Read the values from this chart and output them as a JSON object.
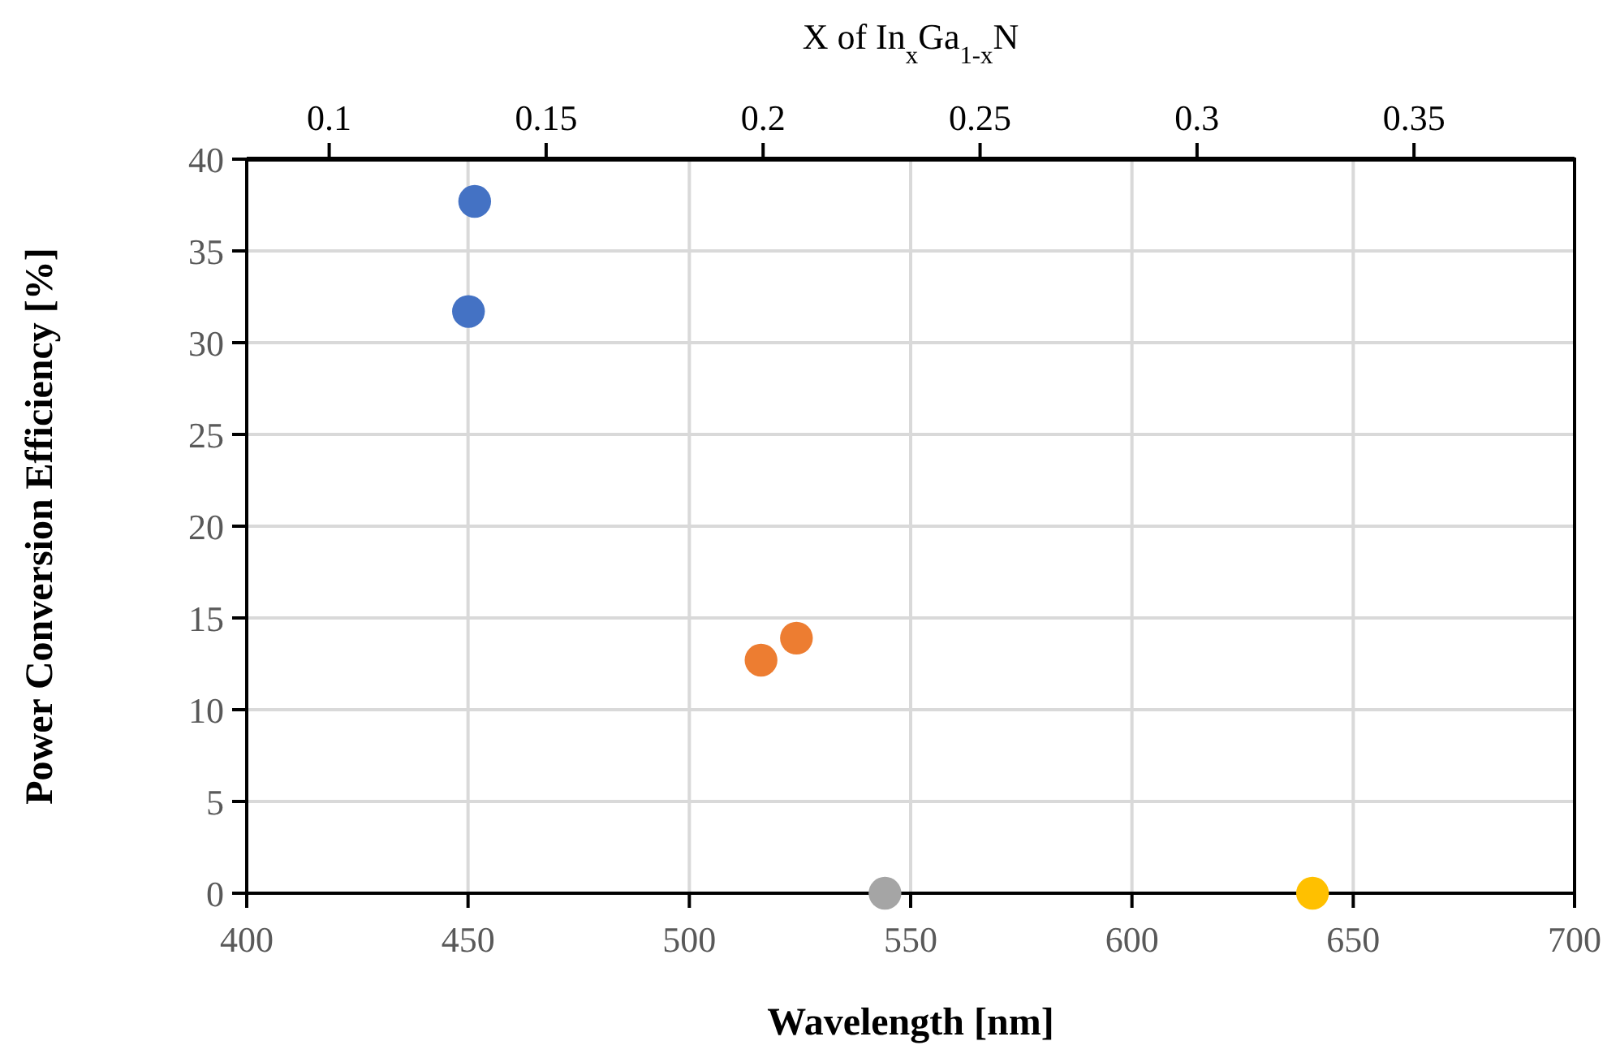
{
  "chart_data": {
    "type": "scatter",
    "xlabel": "Wavelength [nm]",
    "ylabel": "Power Conversion Efficiency [%]",
    "x2label": "X of In$_{x}$Ga$_{1-x}$N",
    "xlim": [
      400,
      700
    ],
    "xticks": [
      400,
      450,
      500,
      550,
      600,
      650,
      700
    ],
    "x2lim": [
      0.081,
      0.387
    ],
    "x2ticks": [
      0.1,
      0.15,
      0.2,
      0.25,
      0.3,
      0.35
    ],
    "ylim": [
      0,
      40
    ],
    "yticks": [
      0,
      5,
      10,
      15,
      20,
      25,
      30,
      35,
      40
    ],
    "grid": true,
    "marker": "circle",
    "series": [
      {
        "color": "#4472c4",
        "x": [
          451.5,
          450.1
        ],
        "values": [
          37.7,
          31.7
        ]
      },
      {
        "color": "#ed7d31",
        "x": [
          516.2,
          524.2
        ],
        "values": [
          12.7,
          13.9
        ]
      },
      {
        "color": "#a5a5a5",
        "x": [
          544.2
        ],
        "values": [
          0
        ]
      },
      {
        "color": "#ffc000",
        "x": [
          640.8
        ],
        "values": [
          0
        ]
      }
    ]
  }
}
